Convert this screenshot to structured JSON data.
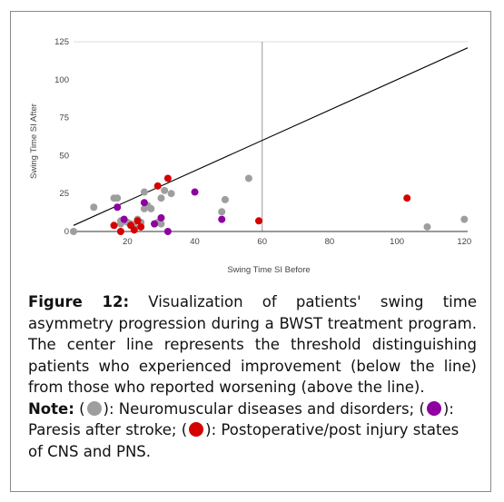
{
  "chart_data": {
    "type": "scatter",
    "xlabel": "Swing Time SI Before",
    "ylabel": "Swing Time SI After",
    "xlim": [
      4,
      121
    ],
    "ylim": [
      0,
      125
    ],
    "x_ticks": [
      "20",
      "40",
      "60",
      "80",
      "100",
      "120"
    ],
    "y_ticks": [
      "0",
      "25",
      "50",
      "75",
      "100",
      "125"
    ],
    "grid": "minimal",
    "threshold_line": {
      "from": [
        4,
        4
      ],
      "to": [
        121,
        121
      ]
    },
    "colors": {
      "neuromuscular": "#9e9e9e",
      "stroke": "#8e00a0",
      "injury": "#d50000"
    },
    "series": [
      {
        "key": "neuromuscular",
        "points": [
          [
            4,
            0
          ],
          [
            10,
            16
          ],
          [
            16,
            22
          ],
          [
            17,
            22
          ],
          [
            18,
            7
          ],
          [
            18,
            5
          ],
          [
            19,
            8
          ],
          [
            20,
            6
          ],
          [
            21,
            5
          ],
          [
            22,
            3
          ],
          [
            23,
            8
          ],
          [
            24,
            6
          ],
          [
            25,
            26
          ],
          [
            25,
            15
          ],
          [
            26,
            17
          ],
          [
            27,
            15
          ],
          [
            29,
            6
          ],
          [
            30,
            5
          ],
          [
            30,
            22
          ],
          [
            31,
            27
          ],
          [
            33,
            25
          ],
          [
            48,
            13
          ],
          [
            49,
            21
          ],
          [
            56,
            35
          ],
          [
            109,
            3
          ],
          [
            120,
            8
          ]
        ]
      },
      {
        "key": "stroke",
        "points": [
          [
            17,
            16
          ],
          [
            19,
            8
          ],
          [
            25,
            19
          ],
          [
            28,
            5
          ],
          [
            30,
            9
          ],
          [
            32,
            0
          ],
          [
            40,
            26
          ],
          [
            48,
            8
          ]
        ]
      },
      {
        "key": "injury",
        "points": [
          [
            16,
            4
          ],
          [
            18,
            0
          ],
          [
            21,
            4
          ],
          [
            22,
            1
          ],
          [
            23,
            7
          ],
          [
            24,
            3
          ],
          [
            29,
            30
          ],
          [
            32,
            35
          ],
          [
            59,
            7
          ],
          [
            103,
            22
          ]
        ]
      }
    ]
  },
  "caption": {
    "figure_label": "Figure 12:",
    "figure_text": " Visualization of patients' swing time asymmetry progression during a BWST treatment program. The center line represents the threshold distinguishing patients who experienced improvement (below the line) from those who reported worsening (above the line).",
    "note_label": "Note:",
    "note_open_1": " (",
    "note_text_1": "): Neuromuscular diseases and disorders; (",
    "note_text_2": "): Paresis after stroke; (",
    "note_text_3": "): Postoperative/post injury states of CNS and PNS."
  }
}
